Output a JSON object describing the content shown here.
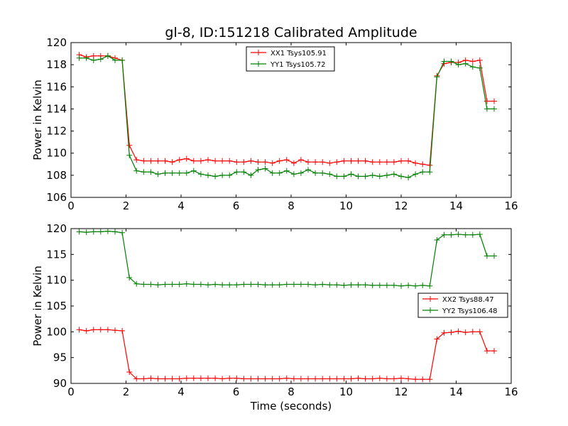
{
  "figure": {
    "title": "gl-8, ID:151218 Calibrated Amplitude",
    "xlabel": "Time (seconds)"
  },
  "chart_data": [
    {
      "type": "line",
      "title": "gl-8, ID:151218 Calibrated Amplitude",
      "xlabel": "",
      "ylabel": "Power in Kelvin",
      "xlim": [
        0,
        16
      ],
      "ylim": [
        106,
        120
      ],
      "xticks": [
        0,
        2,
        4,
        6,
        8,
        10,
        12,
        14,
        16
      ],
      "yticks": [
        106,
        108,
        110,
        112,
        114,
        116,
        118,
        120
      ],
      "legend_position": "top-center",
      "x": [
        0.3,
        0.56,
        0.82,
        1.08,
        1.34,
        1.6,
        1.86,
        2.12,
        2.38,
        2.64,
        2.9,
        3.16,
        3.42,
        3.68,
        3.94,
        4.2,
        4.46,
        4.72,
        4.98,
        5.24,
        5.5,
        5.76,
        6.02,
        6.28,
        6.54,
        6.8,
        7.06,
        7.32,
        7.58,
        7.84,
        8.1,
        8.36,
        8.62,
        8.88,
        9.14,
        9.4,
        9.66,
        9.92,
        10.18,
        10.44,
        10.7,
        10.96,
        11.22,
        11.48,
        11.74,
        12.0,
        12.26,
        12.52,
        12.78,
        13.04,
        13.3,
        13.56,
        13.82,
        14.08,
        14.34,
        14.6,
        14.86,
        15.12,
        15.38
      ],
      "series": [
        {
          "name": "XX1 Tsys105.91",
          "color": "#ff0000",
          "values": [
            118.9,
            118.7,
            118.8,
            118.8,
            118.8,
            118.6,
            118.4,
            110.7,
            109.4,
            109.3,
            109.3,
            109.3,
            109.3,
            109.2,
            109.4,
            109.5,
            109.3,
            109.3,
            109.4,
            109.3,
            109.3,
            109.3,
            109.2,
            109.2,
            109.3,
            109.2,
            109.2,
            109.1,
            109.3,
            109.4,
            109.1,
            109.4,
            109.2,
            109.2,
            109.2,
            109.1,
            109.2,
            109.3,
            109.3,
            109.3,
            109.3,
            109.2,
            109.2,
            109.2,
            109.2,
            109.3,
            109.3,
            109.1,
            109.0,
            108.9,
            117.0,
            118.1,
            118.2,
            118.2,
            118.4,
            118.3,
            118.4,
            114.7,
            114.7
          ]
        },
        {
          "name": "YY1 Tsys105.72",
          "color": "#008000",
          "values": [
            118.6,
            118.6,
            118.4,
            118.5,
            118.8,
            118.4,
            118.4,
            109.8,
            108.4,
            108.3,
            108.3,
            108.1,
            108.2,
            108.2,
            108.2,
            108.2,
            108.4,
            108.1,
            108.0,
            107.9,
            108.0,
            108.0,
            108.3,
            108.3,
            108.0,
            108.5,
            108.6,
            108.2,
            108.2,
            108.4,
            108.1,
            108.2,
            108.5,
            108.2,
            108.2,
            108.1,
            107.9,
            107.9,
            108.1,
            107.9,
            107.9,
            108.0,
            107.9,
            108.0,
            108.1,
            107.9,
            107.8,
            108.1,
            108.3,
            108.3,
            116.9,
            118.3,
            118.3,
            118.0,
            118.1,
            117.8,
            117.7,
            114.0,
            114.0
          ]
        }
      ]
    },
    {
      "type": "line",
      "title": "",
      "xlabel": "Time (seconds)",
      "ylabel": "Power in Kelvin",
      "xlim": [
        0,
        16
      ],
      "ylim": [
        90,
        120
      ],
      "xticks": [
        0,
        2,
        4,
        6,
        8,
        10,
        12,
        14,
        16
      ],
      "yticks": [
        90,
        95,
        100,
        105,
        110,
        115,
        120
      ],
      "legend_position": "center-right",
      "x": [
        0.3,
        0.56,
        0.82,
        1.08,
        1.34,
        1.6,
        1.86,
        2.12,
        2.38,
        2.64,
        2.9,
        3.16,
        3.42,
        3.68,
        3.94,
        4.2,
        4.46,
        4.72,
        4.98,
        5.24,
        5.5,
        5.76,
        6.02,
        6.28,
        6.54,
        6.8,
        7.06,
        7.32,
        7.58,
        7.84,
        8.1,
        8.36,
        8.62,
        8.88,
        9.14,
        9.4,
        9.66,
        9.92,
        10.18,
        10.44,
        10.7,
        10.96,
        11.22,
        11.48,
        11.74,
        12.0,
        12.26,
        12.52,
        12.78,
        13.04,
        13.3,
        13.56,
        13.82,
        14.08,
        14.34,
        14.6,
        14.86,
        15.12,
        15.38
      ],
      "series": [
        {
          "name": "XX2 Tsys88.47",
          "color": "#ff0000",
          "values": [
            100.4,
            100.2,
            100.4,
            100.4,
            100.4,
            100.3,
            100.2,
            92.2,
            90.9,
            90.9,
            91.0,
            90.9,
            90.9,
            90.9,
            90.9,
            91.0,
            91.0,
            91.0,
            91.0,
            91.0,
            90.9,
            91.0,
            91.0,
            90.9,
            90.9,
            90.9,
            90.9,
            90.9,
            90.9,
            91.0,
            90.9,
            90.9,
            90.9,
            90.9,
            90.9,
            90.9,
            90.9,
            90.9,
            90.9,
            91.0,
            90.9,
            90.9,
            91.0,
            90.9,
            90.9,
            91.0,
            90.9,
            90.8,
            90.8,
            90.8,
            98.6,
            99.8,
            99.9,
            100.1,
            99.9,
            100.0,
            100.0,
            96.3,
            96.3
          ]
        },
        {
          "name": "YY2 Tsys106.48",
          "color": "#008000",
          "values": [
            119.4,
            119.3,
            119.4,
            119.4,
            119.5,
            119.4,
            119.2,
            110.5,
            109.3,
            109.2,
            109.2,
            109.1,
            109.2,
            109.2,
            109.2,
            109.3,
            109.2,
            109.2,
            109.1,
            109.2,
            109.1,
            109.1,
            109.1,
            109.2,
            109.2,
            109.2,
            109.1,
            109.1,
            109.1,
            109.2,
            109.2,
            109.2,
            109.2,
            109.1,
            109.2,
            109.1,
            109.1,
            109.0,
            109.1,
            109.1,
            109.1,
            109.0,
            109.0,
            109.0,
            109.0,
            108.9,
            109.0,
            108.9,
            109.0,
            108.9,
            117.8,
            118.8,
            118.8,
            118.9,
            118.8,
            118.8,
            118.9,
            114.7,
            114.7
          ]
        }
      ]
    }
  ]
}
